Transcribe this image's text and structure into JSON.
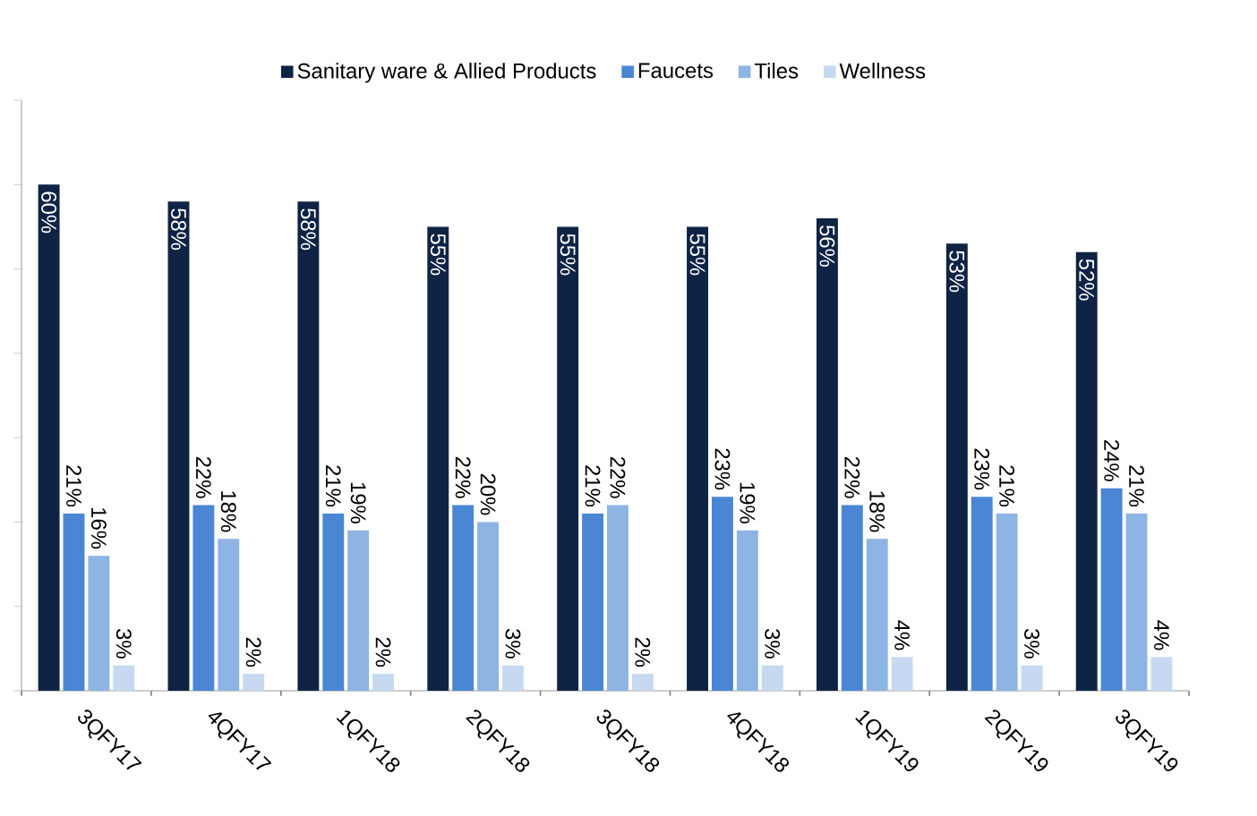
{
  "chart_data": {
    "type": "bar",
    "categories": [
      "3QFY17",
      "4QFY17",
      "1QFY18",
      "2QFY18",
      "3QFY18",
      "4QFY18",
      "1QFY19",
      "2QFY19",
      "3QFY19"
    ],
    "series": [
      {
        "name": "Sanitary ware & Allied Products",
        "color": "#0f2344",
        "values": [
          60,
          58,
          58,
          55,
          55,
          55,
          56,
          53,
          52
        ],
        "value_labels": [
          "60%",
          "58%",
          "58%",
          "55%",
          "55%",
          "55%",
          "56%",
          "53%",
          "52%"
        ]
      },
      {
        "name": "Faucets",
        "color": "#4a86d4",
        "values": [
          21,
          22,
          21,
          22,
          21,
          23,
          22,
          23,
          24
        ],
        "value_labels": [
          "21%",
          "22%",
          "21%",
          "22%",
          "21%",
          "23%",
          "22%",
          "23%",
          "24%"
        ]
      },
      {
        "name": "Tiles",
        "color": "#8db4e3",
        "values": [
          16,
          18,
          19,
          20,
          22,
          19,
          18,
          21,
          21
        ],
        "value_labels": [
          "16%",
          "18%",
          "19%",
          "20%",
          "22%",
          "19%",
          "18%",
          "21%",
          "21%"
        ]
      },
      {
        "name": "Wellness",
        "color": "#c6d9f1",
        "values": [
          3,
          2,
          2,
          3,
          2,
          3,
          4,
          3,
          4
        ],
        "value_labels": [
          "3%",
          "2%",
          "2%",
          "3%",
          "2%",
          "3%",
          "4%",
          "3%",
          "4%"
        ]
      }
    ],
    "ylim": [
      0,
      70
    ],
    "yticks": [
      {
        "value": 0,
        "label": null
      },
      {
        "value": 10,
        "label": null
      },
      {
        "value": 20,
        "label": null
      },
      {
        "value": 30,
        "label": null
      },
      {
        "value": 40,
        "label": null
      },
      {
        "value": 50,
        "label": null
      },
      {
        "value": 60,
        "label": null
      },
      {
        "value": 70,
        "label": null
      }
    ],
    "tick_labels": "x",
    "legend": "top"
  }
}
